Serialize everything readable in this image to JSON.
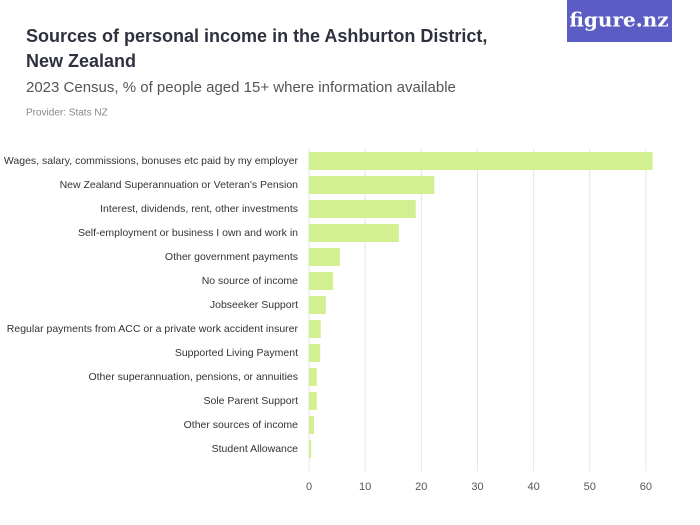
{
  "chart_data": {
    "type": "bar",
    "orientation": "horizontal",
    "title_lines": [
      "Sources of personal income in the Ashburton District,",
      "New Zealand"
    ],
    "subtitle": "2023 Census, % of people aged 15+ where information available",
    "provider": "Provider: Stats NZ",
    "logo": "figure.nz",
    "categories": [
      "Wages, salary, commissions, bonuses etc paid by my employer",
      "New Zealand Superannuation or Veteran's Pension",
      "Interest, dividends, rent, other investments",
      "Self-employment or business I own and work in",
      "Other government payments",
      "No source of income",
      "Jobseeker Support",
      "Regular payments from ACC or a private work accident insurer",
      "Supported Living Payment",
      "Other superannuation, pensions, or annuities",
      "Sole Parent Support",
      "Other sources of income",
      "Student Allowance"
    ],
    "values": [
      61.2,
      22.3,
      19.0,
      16.0,
      5.5,
      4.3,
      3.0,
      2.1,
      2.0,
      1.4,
      1.4,
      0.9,
      0.4
    ],
    "color": "#d2f08f",
    "xlim": [
      0,
      65
    ],
    "xticks": [
      0,
      10,
      20,
      30,
      40,
      50,
      60
    ],
    "grid": true
  }
}
